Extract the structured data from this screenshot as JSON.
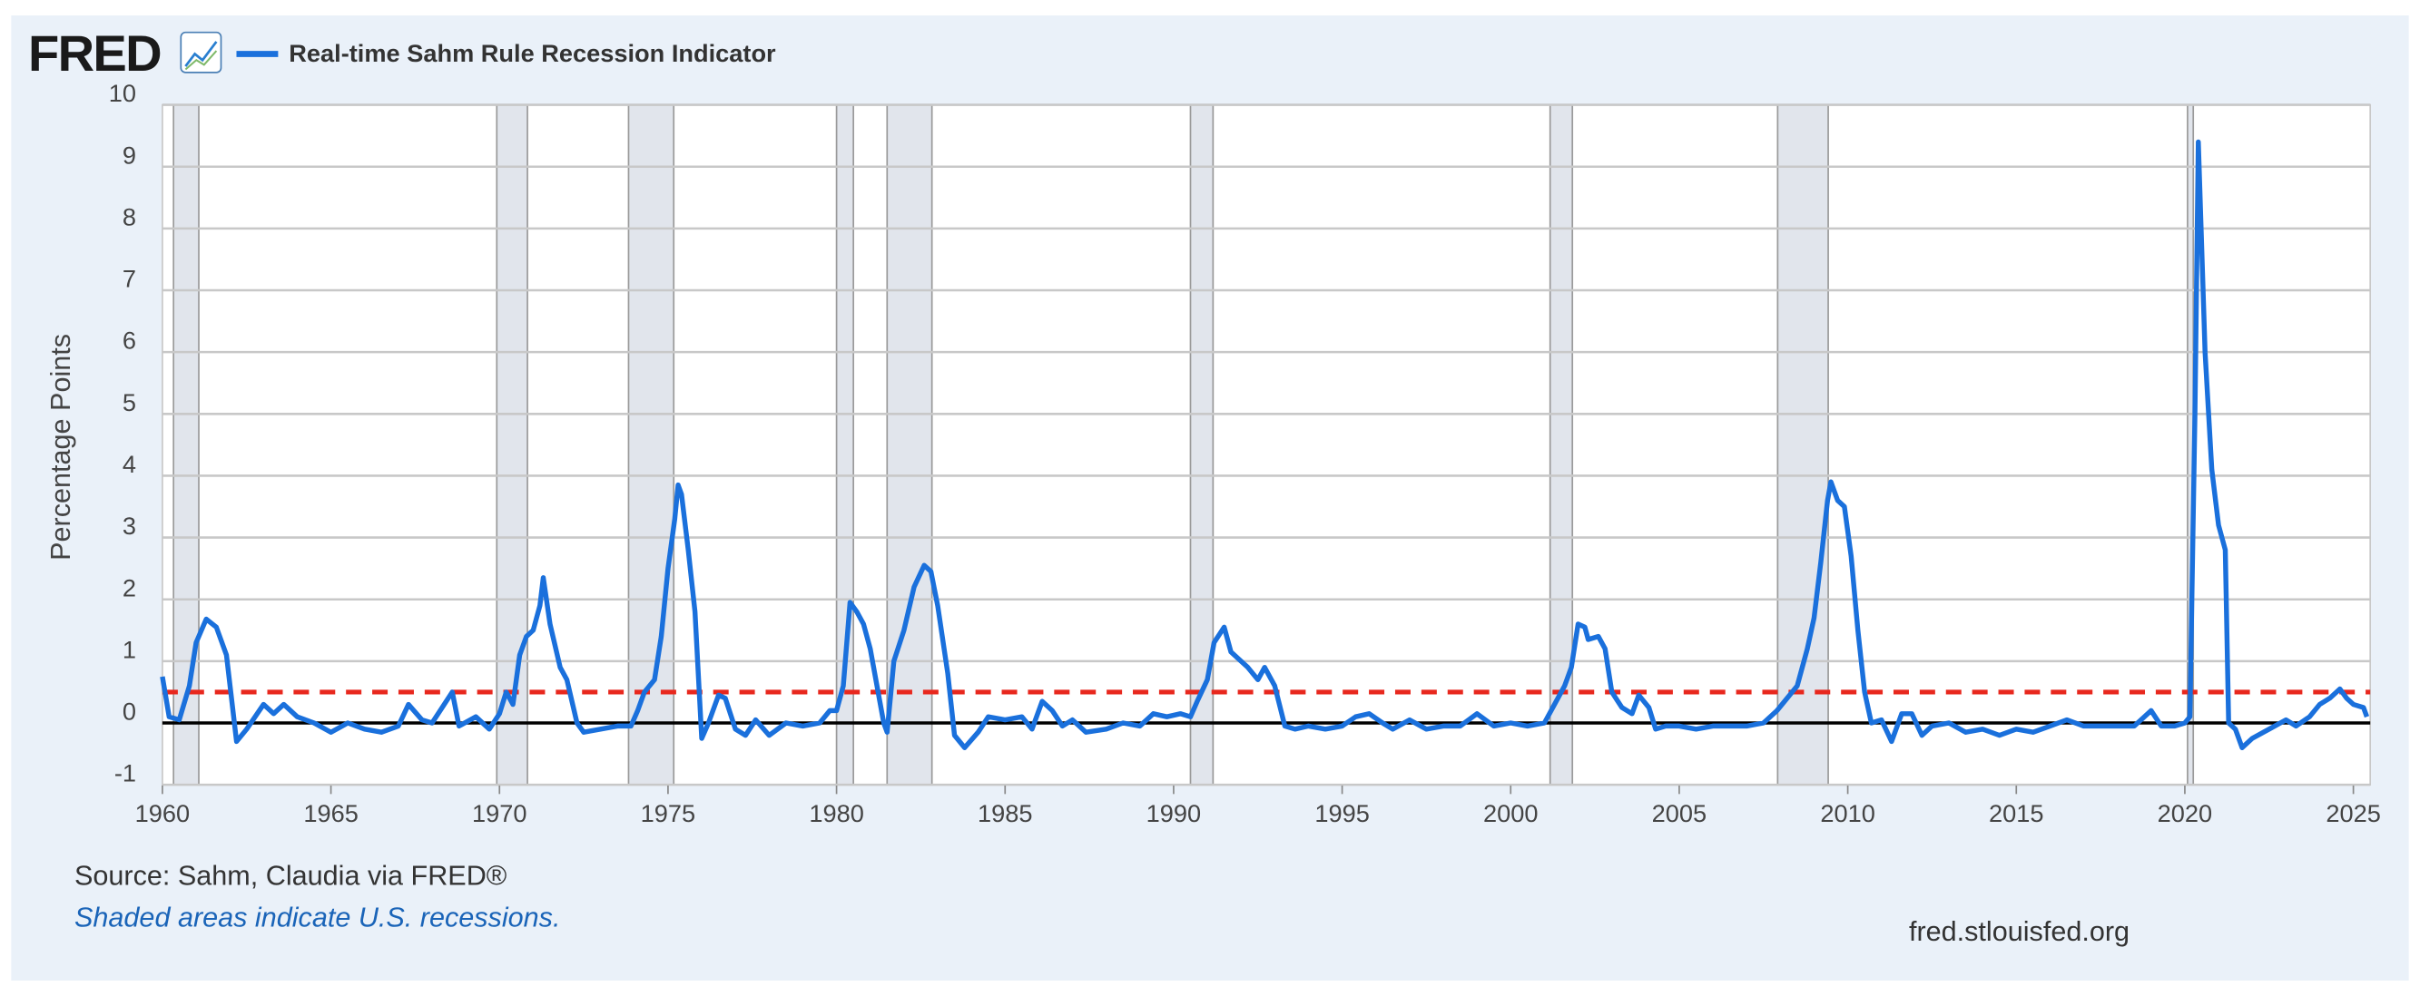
{
  "chart_data": {
    "type": "line",
    "logo": "FRED",
    "title": "Real-time Sahm Rule Recession Indicator",
    "y_label": "Percentage Points",
    "source": "Source: Sahm, Claudia via FRED®",
    "note": "Shaded areas indicate U.S. recessions.",
    "site": "fred.stlouisfed.org",
    "xlim": [
      1960,
      2025.5
    ],
    "xticks": [
      1960,
      1965,
      1970,
      1975,
      1980,
      1985,
      1990,
      1995,
      2000,
      2005,
      2010,
      2015,
      2020,
      2025
    ],
    "ylim": [
      -1,
      10
    ],
    "yticks": [
      -1,
      0,
      1,
      2,
      3,
      4,
      5,
      6,
      7,
      8,
      9,
      10
    ],
    "grid": true,
    "zero_line": true,
    "threshold": 0.5,
    "threshold_color": "#e8281e",
    "recession_color": "#e1e5ec",
    "recessions": [
      [
        1960.33,
        1961.08
      ],
      [
        1969.92,
        1970.83
      ],
      [
        1973.83,
        1975.17
      ],
      [
        1980.0,
        1980.5
      ],
      [
        1981.5,
        1982.83
      ],
      [
        1990.5,
        1991.17
      ],
      [
        2001.17,
        2001.83
      ],
      [
        2007.92,
        2009.42
      ],
      [
        2020.08,
        2020.25
      ]
    ],
    "series": [
      {
        "name": "Real-time Sahm Rule Recession Indicator",
        "color": "#1a70dc",
        "x": [
          1960.0,
          1960.2,
          1960.5,
          1960.8,
          1961.0,
          1961.3,
          1961.6,
          1961.9,
          1962.2,
          1962.5,
          1963.0,
          1963.3,
          1963.6,
          1964.0,
          1964.5,
          1965.0,
          1965.5,
          1966.0,
          1966.5,
          1967.0,
          1967.3,
          1967.7,
          1968.0,
          1968.3,
          1968.6,
          1968.8,
          1969.3,
          1969.7,
          1970.0,
          1970.2,
          1970.4,
          1970.6,
          1970.8,
          1971.0,
          1971.2,
          1971.3,
          1971.5,
          1971.8,
          1972.0,
          1972.3,
          1972.5,
          1973.0,
          1973.5,
          1973.9,
          1974.1,
          1974.3,
          1974.6,
          1974.8,
          1975.0,
          1975.2,
          1975.3,
          1975.4,
          1975.6,
          1975.8,
          1976.0,
          1976.2,
          1976.5,
          1976.7,
          1977.0,
          1977.3,
          1977.6,
          1978.0,
          1978.5,
          1979.0,
          1979.5,
          1979.8,
          1980.0,
          1980.2,
          1980.4,
          1980.6,
          1980.8,
          1981.0,
          1981.2,
          1981.4,
          1981.5,
          1981.7,
          1982.0,
          1982.3,
          1982.6,
          1982.8,
          1983.0,
          1983.3,
          1983.5,
          1983.8,
          1984.2,
          1984.5,
          1985.0,
          1985.5,
          1985.8,
          1986.1,
          1986.4,
          1986.7,
          1987.0,
          1987.4,
          1988.0,
          1988.5,
          1989.0,
          1989.4,
          1989.8,
          1990.2,
          1990.5,
          1990.7,
          1991.0,
          1991.2,
          1991.5,
          1991.7,
          1992.0,
          1992.2,
          1992.5,
          1992.7,
          1993.0,
          1993.3,
          1993.6,
          1994.0,
          1994.5,
          1995.0,
          1995.4,
          1995.8,
          1996.2,
          1996.5,
          1997.0,
          1997.5,
          1998.0,
          1998.5,
          1999.0,
          1999.5,
          2000.0,
          2000.5,
          2001.0,
          2001.3,
          2001.6,
          2001.8,
          2002.0,
          2002.2,
          2002.3,
          2002.6,
          2002.8,
          2003.0,
          2003.3,
          2003.6,
          2003.8,
          2004.1,
          2004.3,
          2004.6,
          2005.0,
          2005.5,
          2006.0,
          2006.5,
          2007.0,
          2007.5,
          2007.9,
          2008.2,
          2008.5,
          2008.8,
          2009.0,
          2009.2,
          2009.4,
          2009.5,
          2009.7,
          2009.9,
          2010.1,
          2010.3,
          2010.5,
          2010.7,
          2011.0,
          2011.3,
          2011.6,
          2011.9,
          2012.2,
          2012.5,
          2013.0,
          2013.5,
          2014.0,
          2014.5,
          2015.0,
          2015.5,
          2016.0,
          2016.5,
          2017.0,
          2017.5,
          2018.0,
          2018.5,
          2019.0,
          2019.3,
          2019.7,
          2020.0,
          2020.15,
          2020.3,
          2020.4,
          2020.6,
          2020.8,
          2021.0,
          2021.2,
          2021.3,
          2021.5,
          2021.7,
          2022.0,
          2022.5,
          2023.0,
          2023.3,
          2023.7,
          2024.0,
          2024.3,
          2024.6,
          2024.8,
          2025.0,
          2025.3,
          2025.4
        ],
        "values": [
          0.75,
          0.1,
          0.05,
          0.6,
          1.3,
          1.68,
          1.55,
          1.1,
          -0.3,
          -0.1,
          0.3,
          0.15,
          0.3,
          0.1,
          0,
          -0.15,
          0,
          -0.1,
          -0.15,
          -0.05,
          0.3,
          0.05,
          0,
          0.25,
          0.5,
          -0.05,
          0.1,
          -0.1,
          0.15,
          0.5,
          0.3,
          1.1,
          1.4,
          1.5,
          1.9,
          2.35,
          1.6,
          0.9,
          0.7,
          0,
          -0.15,
          -0.1,
          -0.05,
          -0.05,
          0.2,
          0.5,
          0.7,
          1.4,
          2.5,
          3.3,
          3.85,
          3.7,
          2.8,
          1.8,
          -0.25,
          0,
          0.45,
          0.4,
          -0.1,
          -0.2,
          0.05,
          -0.2,
          0,
          -0.05,
          0,
          0.2,
          0.2,
          0.6,
          1.95,
          1.8,
          1.6,
          1.2,
          0.6,
          0,
          -0.15,
          1.0,
          1.5,
          2.2,
          2.55,
          2.45,
          1.9,
          0.8,
          -0.2,
          -0.4,
          -0.15,
          0.1,
          0.05,
          0.1,
          -0.1,
          0.35,
          0.2,
          -0.05,
          0.05,
          -0.15,
          -0.1,
          0,
          -0.05,
          0.15,
          0.1,
          0.15,
          0.1,
          0.35,
          0.7,
          1.3,
          1.55,
          1.15,
          1.0,
          0.9,
          0.7,
          0.9,
          0.6,
          -0.05,
          -0.1,
          -0.05,
          -0.1,
          -0.05,
          0.1,
          0.15,
          0,
          -0.1,
          0.05,
          -0.1,
          -0.05,
          -0.05,
          0.15,
          -0.05,
          0,
          -0.05,
          0,
          0.3,
          0.6,
          0.9,
          1.6,
          1.55,
          1.35,
          1.4,
          1.2,
          0.5,
          0.25,
          0.15,
          0.45,
          0.25,
          -0.1,
          -0.05,
          -0.05,
          -0.1,
          -0.05,
          -0.05,
          -0.05,
          0,
          0.2,
          0.4,
          0.6,
          1.2,
          1.7,
          2.6,
          3.6,
          3.9,
          3.6,
          3.5,
          2.7,
          1.5,
          0.5,
          0,
          0.05,
          -0.3,
          0.15,
          0.15,
          -0.2,
          -0.05,
          0,
          -0.15,
          -0.1,
          -0.2,
          -0.1,
          -0.15,
          -0.05,
          0.05,
          -0.05,
          -0.05,
          -0.05,
          -0.05,
          0.2,
          -0.05,
          -0.05,
          0,
          0.1,
          5.0,
          9.4,
          6.0,
          4.1,
          3.2,
          2.8,
          0,
          -0.1,
          -0.4,
          -0.25,
          -0.1,
          0.05,
          -0.05,
          0.1,
          0.3,
          0.4,
          0.55,
          0.4,
          0.3,
          0.25,
          0.1
        ]
      }
    ]
  }
}
